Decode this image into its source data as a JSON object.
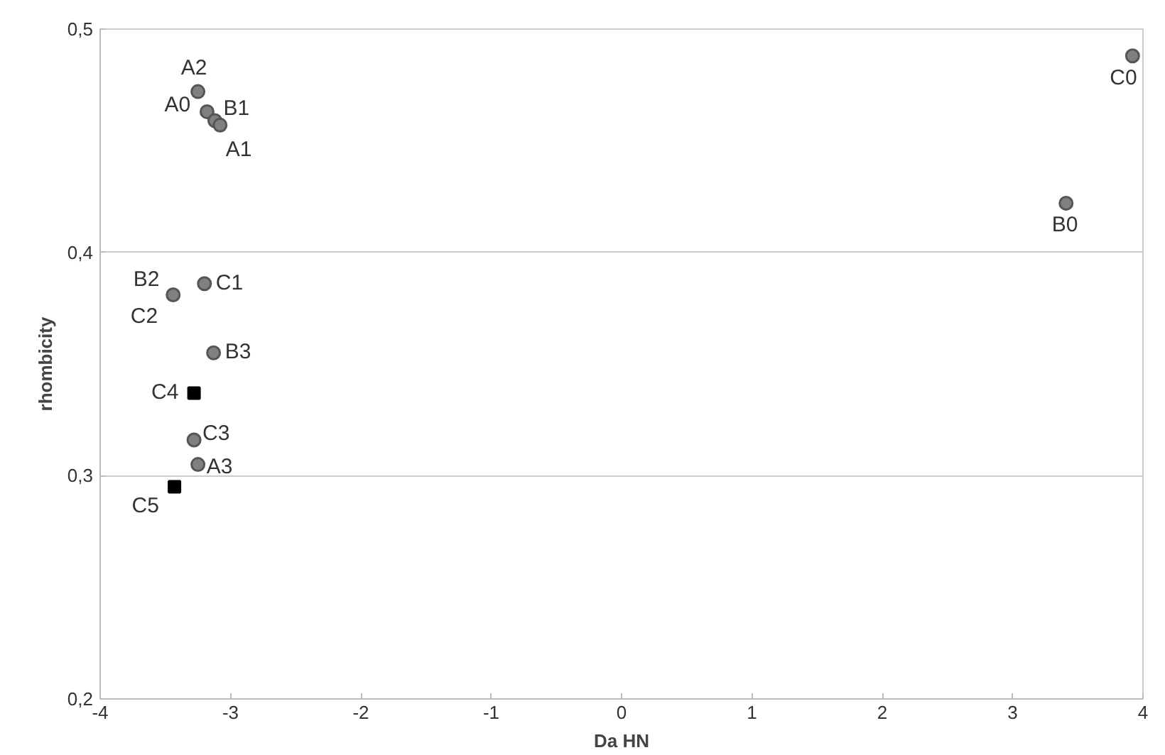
{
  "chart_data": {
    "type": "scatter",
    "xlabel": "Da HN",
    "ylabel": "rhombicity",
    "xlim": [
      -4,
      4
    ],
    "xticks": [
      -4,
      -3,
      -2,
      -1,
      0,
      1,
      2,
      3,
      4
    ],
    "ylim": [
      0.2,
      0.5
    ],
    "yticks": [
      {
        "value": 0.2,
        "label": "0,2"
      },
      {
        "value": 0.3,
        "label": "0,3"
      },
      {
        "value": 0.4,
        "label": "0,4"
      },
      {
        "value": 0.5,
        "label": "0,5"
      }
    ],
    "grid": "y",
    "series": [
      {
        "color": "#808080",
        "marker": "circle",
        "x": [
          -3.25,
          -3.18,
          -3.12,
          -3.08,
          3.41,
          3.92,
          -3.44,
          -3.2,
          -3.13,
          -3.28,
          -3.25
        ],
        "values": [
          0.472,
          0.463,
          0.459,
          0.457,
          0.422,
          0.488,
          0.381,
          0.386,
          0.355,
          0.316,
          0.305
        ]
      },
      {
        "color": "#000000",
        "marker": "square",
        "x": [
          -3.28,
          -3.43
        ],
        "values": [
          0.337,
          0.295
        ]
      }
    ],
    "annotations": [
      {
        "text": "A2",
        "x": -3.25,
        "y": 0.472
      },
      {
        "text": "A0",
        "x": -3.18,
        "y": 0.463
      },
      {
        "text": "B1",
        "x": -3.12,
        "y": 0.459
      },
      {
        "text": "A1",
        "x": -3.08,
        "y": 0.457
      },
      {
        "text": "B0",
        "x": 3.41,
        "y": 0.422
      },
      {
        "text": "C0",
        "x": 3.92,
        "y": 0.488
      },
      {
        "text": "B2",
        "x": -3.44,
        "y": 0.381
      },
      {
        "text": "C2",
        "x": -3.44,
        "y": 0.381
      },
      {
        "text": "C1",
        "x": -3.2,
        "y": 0.386
      },
      {
        "text": "B3",
        "x": -3.13,
        "y": 0.355
      },
      {
        "text": "C4",
        "x": -3.28,
        "y": 0.337
      },
      {
        "text": "C3",
        "x": -3.28,
        "y": 0.316
      },
      {
        "text": "A3",
        "x": -3.25,
        "y": 0.305
      },
      {
        "text": "C5",
        "x": -3.43,
        "y": 0.295
      }
    ]
  }
}
